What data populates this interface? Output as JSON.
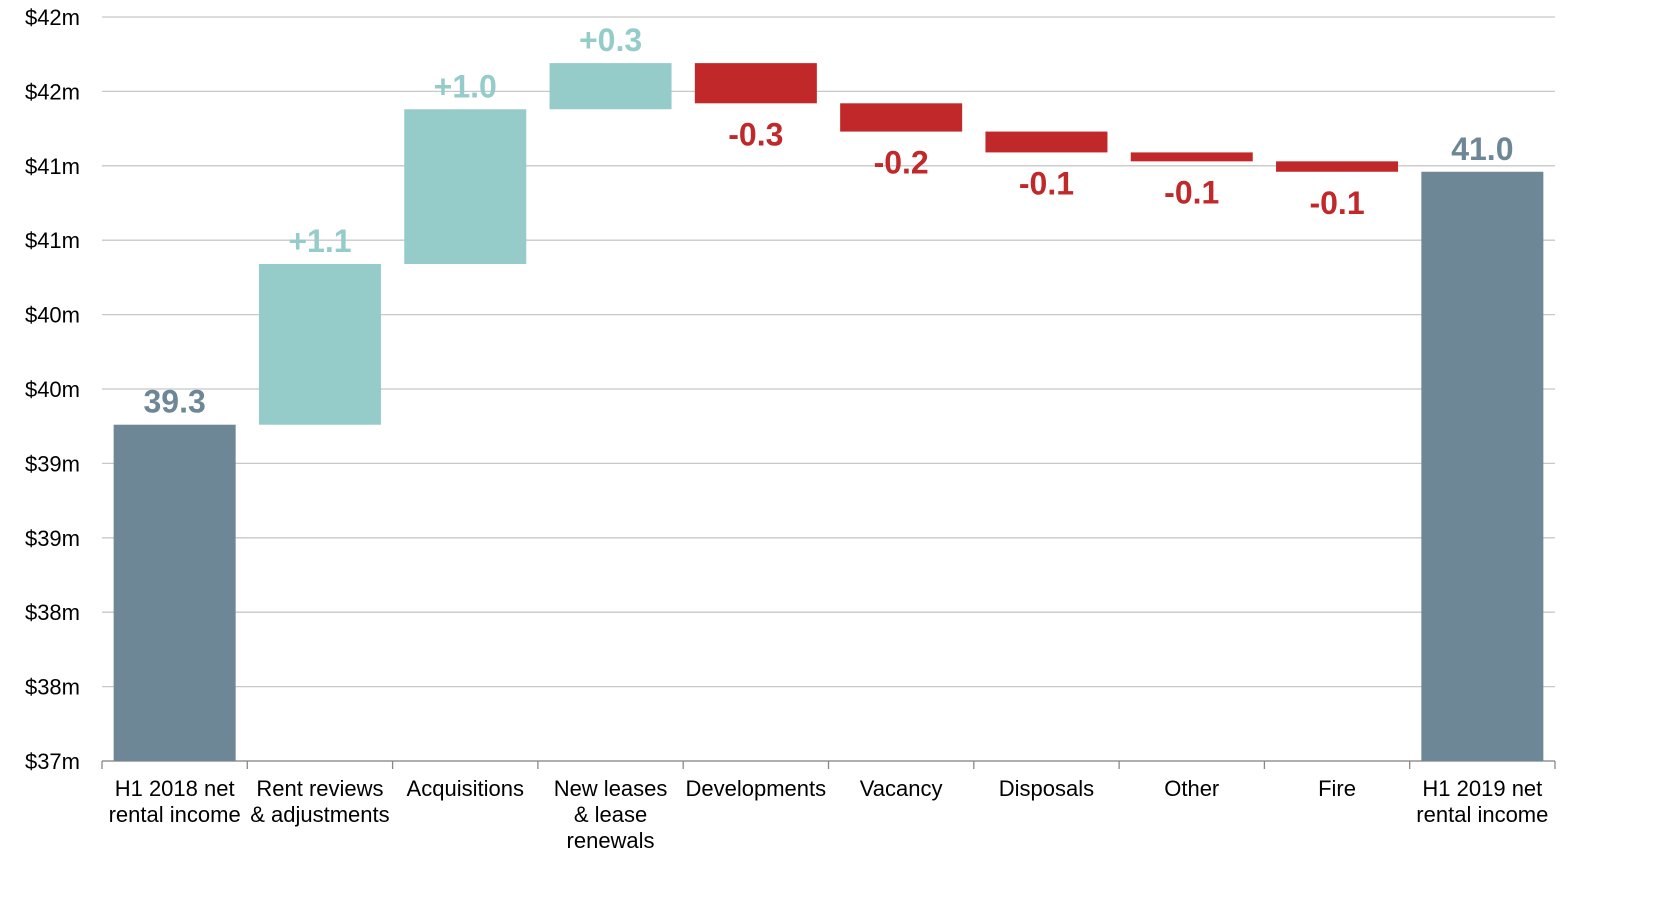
{
  "chart_data": {
    "type": "waterfall",
    "categories": [
      "H1 2018 net\nrental income",
      "Rent reviews\n& adjustments",
      "Acquisitions",
      "New leases\n& lease\nrenewals",
      "Developments",
      "Vacancy",
      "Disposals",
      "Other",
      "Fire",
      "H1 2019 net\nrental income"
    ],
    "values": [
      39.26,
      1.08,
      1.04,
      0.31,
      -0.27,
      -0.19,
      -0.14,
      -0.06,
      -0.07,
      40.96
    ],
    "value_labels": [
      "39.3",
      "+1.1",
      "+1.0",
      "+0.3",
      "-0.3",
      "-0.2",
      "-0.1",
      "-0.1",
      "-0.1",
      "41.0"
    ],
    "total_color": "#6e8796",
    "increase_color": "#95ccc9",
    "decrease_color": "#c0282a",
    "ylim": [
      37,
      42
    ],
    "yticks": [
      {
        "value": 37,
        "label": "$37m"
      },
      {
        "value": 37.5,
        "label": "$38m"
      },
      {
        "value": 38,
        "label": "$38m"
      },
      {
        "value": 38.5,
        "label": "$39m"
      },
      {
        "value": 39,
        "label": "$39m"
      },
      {
        "value": 39.5,
        "label": "$40m"
      },
      {
        "value": 40,
        "label": "$40m"
      },
      {
        "value": 40.5,
        "label": "$41m"
      },
      {
        "value": 41,
        "label": "$41m"
      },
      {
        "value": 41.5,
        "label": "$42m"
      },
      {
        "value": 42,
        "label": "$42m"
      }
    ],
    "grid": true
  }
}
